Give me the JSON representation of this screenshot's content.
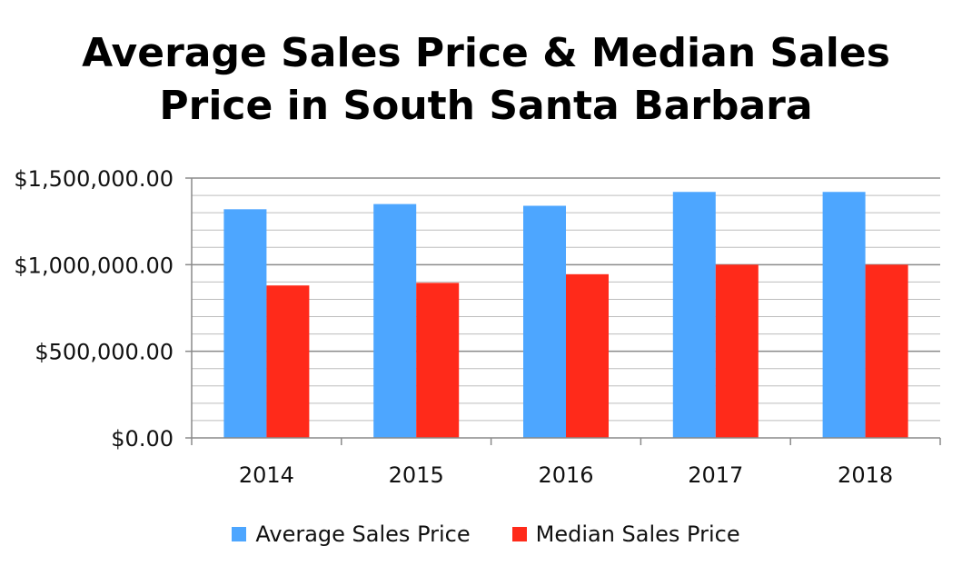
{
  "chart_data": {
    "type": "bar",
    "title_lines": [
      "Average Sales Price & Median Sales",
      "Price in South Santa Barbara"
    ],
    "categories": [
      "2014",
      "2015",
      "2016",
      "2017",
      "2018"
    ],
    "series": [
      {
        "name": "Average Sales Price",
        "color": "#4da6ff",
        "values": [
          1320000,
          1350000,
          1340000,
          1420000,
          1420000
        ]
      },
      {
        "name": "Median Sales Price",
        "color": "#ff2a1a",
        "values": [
          880000,
          895000,
          945000,
          1000000,
          1000000
        ]
      }
    ],
    "yticks": [
      "$0.00",
      "$500,000.00",
      "$1,000,000.00",
      "$1,500,000.00"
    ],
    "ylim": [
      0,
      1500000
    ],
    "ytick_values": [
      0,
      500000,
      1000000,
      1500000
    ],
    "minor_step": 100000,
    "grid": true,
    "legend_position": "bottom"
  }
}
